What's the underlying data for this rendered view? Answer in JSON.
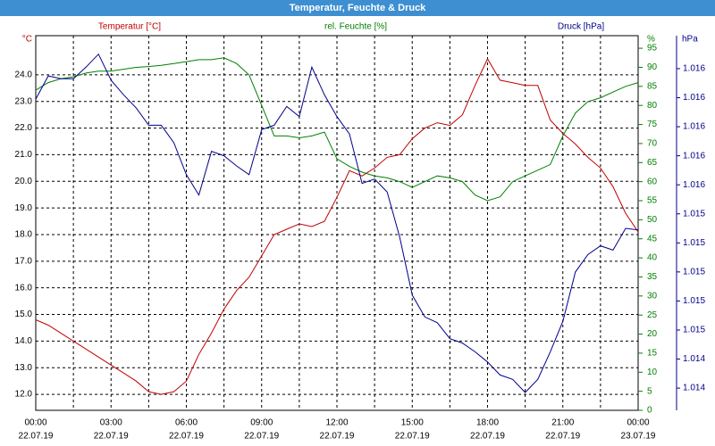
{
  "chart_data": {
    "type": "line",
    "title": "Temperatur, Feuchte & Druck",
    "ylabel": "°C",
    "y2label": "%",
    "y3label": "hPa",
    "x": [
      0,
      0.5,
      1,
      1.5,
      2,
      2.5,
      3,
      3.5,
      4,
      4.5,
      5,
      5.5,
      6,
      6.5,
      7,
      7.5,
      8,
      8.5,
      9,
      9.5,
      10,
      10.5,
      11,
      11.5,
      12,
      12.5,
      13,
      13.5,
      14,
      14.5,
      15,
      15.5,
      16,
      16.5,
      17,
      17.5,
      18,
      18.5,
      19,
      19.5,
      20,
      20.5,
      21,
      21.5,
      22,
      22.5,
      23,
      23.5,
      24
    ],
    "xlim": [
      0,
      24
    ],
    "xticks": [
      {
        "value": 0,
        "label": "00:00"
      },
      {
        "value": 3,
        "label": "03:00"
      },
      {
        "value": 6,
        "label": "06:00"
      },
      {
        "value": 9,
        "label": "09:00"
      },
      {
        "value": 12,
        "label": "12:00"
      },
      {
        "value": 15,
        "label": "15:00"
      },
      {
        "value": 18,
        "label": "18:00"
      },
      {
        "value": 21,
        "label": "21:00"
      },
      {
        "value": 24,
        "label": "00:00"
      }
    ],
    "xtick_dates": [
      "22.07.19",
      "22.07.19",
      "22.07.19",
      "22.07.19",
      "22.07.19",
      "22.07.19",
      "22.07.19",
      "22.07.19",
      "23.07.19"
    ],
    "minor_xticks": [
      1.5,
      4.5,
      7.5,
      10.5,
      13.5,
      16.5,
      19.5,
      22.5
    ],
    "ylim": [
      11.4,
      25.47
    ],
    "yticks": [
      {
        "value": 12,
        "label": "12.0"
      },
      {
        "value": 13,
        "label": "13.0"
      },
      {
        "value": 14,
        "label": "14.0"
      },
      {
        "value": 15,
        "label": "15.0"
      },
      {
        "value": 16,
        "label": "16.0"
      },
      {
        "value": 17,
        "label": "17.0"
      },
      {
        "value": 18,
        "label": "18.0"
      },
      {
        "value": 19,
        "label": "19.0"
      },
      {
        "value": 20,
        "label": "20.0"
      },
      {
        "value": 21,
        "label": "21.0"
      },
      {
        "value": 22,
        "label": "22.0"
      },
      {
        "value": 23,
        "label": "23.0"
      },
      {
        "value": 24,
        "label": "24.0"
      }
    ],
    "y2lim": [
      0,
      98.3
    ],
    "y2ticks": [
      0,
      5,
      10,
      15,
      20,
      25,
      30,
      35,
      40,
      45,
      50,
      55,
      60,
      65,
      70,
      75,
      80,
      85,
      90,
      95
    ],
    "y3lim": [
      1.014047,
      1.016627
    ],
    "y3ticks": [
      {
        "value": 1.0142,
        "label": "1.014"
      },
      {
        "value": 1.0144,
        "label": "1.014"
      },
      {
        "value": 1.0146,
        "label": "1.015"
      },
      {
        "value": 1.0148,
        "label": "1.015"
      },
      {
        "value": 1.015,
        "label": "1.015"
      },
      {
        "value": 1.0152,
        "label": "1.015"
      },
      {
        "value": 1.0154,
        "label": "1.015"
      },
      {
        "value": 1.0156,
        "label": "1.016"
      },
      {
        "value": 1.0158,
        "label": "1.016"
      },
      {
        "value": 1.016,
        "label": "1.016"
      },
      {
        "value": 1.0162,
        "label": "1.016"
      },
      {
        "value": 1.0164,
        "label": "1.016"
      }
    ],
    "grid": true,
    "series": [
      {
        "name": "Temperatur [°C]",
        "color": "#c00000",
        "axis": "y",
        "values": [
          14.8,
          14.6,
          14.3,
          14.0,
          13.7,
          13.4,
          13.1,
          12.8,
          12.5,
          12.1,
          12.0,
          12.1,
          12.5,
          13.5,
          14.3,
          15.2,
          15.9,
          16.4,
          17.2,
          18.0,
          18.2,
          18.4,
          18.3,
          18.5,
          19.4,
          20.4,
          20.2,
          20.5,
          20.9,
          21.0,
          21.6,
          22.0,
          22.2,
          22.1,
          22.5,
          23.6,
          24.6,
          23.8,
          23.7,
          23.6,
          23.6,
          22.3,
          21.8,
          21.4,
          20.9,
          20.5,
          19.8,
          18.8,
          18.1
        ]
      },
      {
        "name": "rel. Feuchte [%]",
        "color": "#008000",
        "axis": "y2",
        "values": [
          84,
          86,
          87,
          87.5,
          88.5,
          89,
          89,
          89.5,
          90,
          90.2,
          90.5,
          91,
          91.5,
          92,
          92,
          92.5,
          91,
          88,
          80,
          72,
          72,
          71.5,
          72,
          73,
          66,
          64,
          62.5,
          61.5,
          61,
          60,
          58.5,
          60,
          61.5,
          61,
          60,
          56.5,
          55,
          56,
          60,
          61.5,
          63,
          64.5,
          72,
          78,
          81,
          82,
          83.5,
          85,
          86
        ]
      },
      {
        "name": "Druck [hPa]",
        "color": "#00008b",
        "axis": "y3",
        "values": [
          1.01619,
          1.01635,
          1.01633,
          1.01633,
          1.01641,
          1.0165,
          1.01632,
          1.01622,
          1.01613,
          1.01601,
          1.01601,
          1.01589,
          1.01567,
          1.01553,
          1.01583,
          1.0158,
          1.01573,
          1.01567,
          1.01598,
          1.01601,
          1.01614,
          1.01607,
          1.01641,
          1.01622,
          1.01607,
          1.01595,
          1.01561,
          1.01564,
          1.01555,
          1.01524,
          1.01484,
          1.01469,
          1.01465,
          1.01454,
          1.01451,
          1.01445,
          1.01438,
          1.01429,
          1.01426,
          1.01417,
          1.01426,
          1.01445,
          1.01466,
          1.015,
          1.01512,
          1.01518,
          1.01515,
          1.0153,
          1.01529
        ]
      }
    ]
  }
}
